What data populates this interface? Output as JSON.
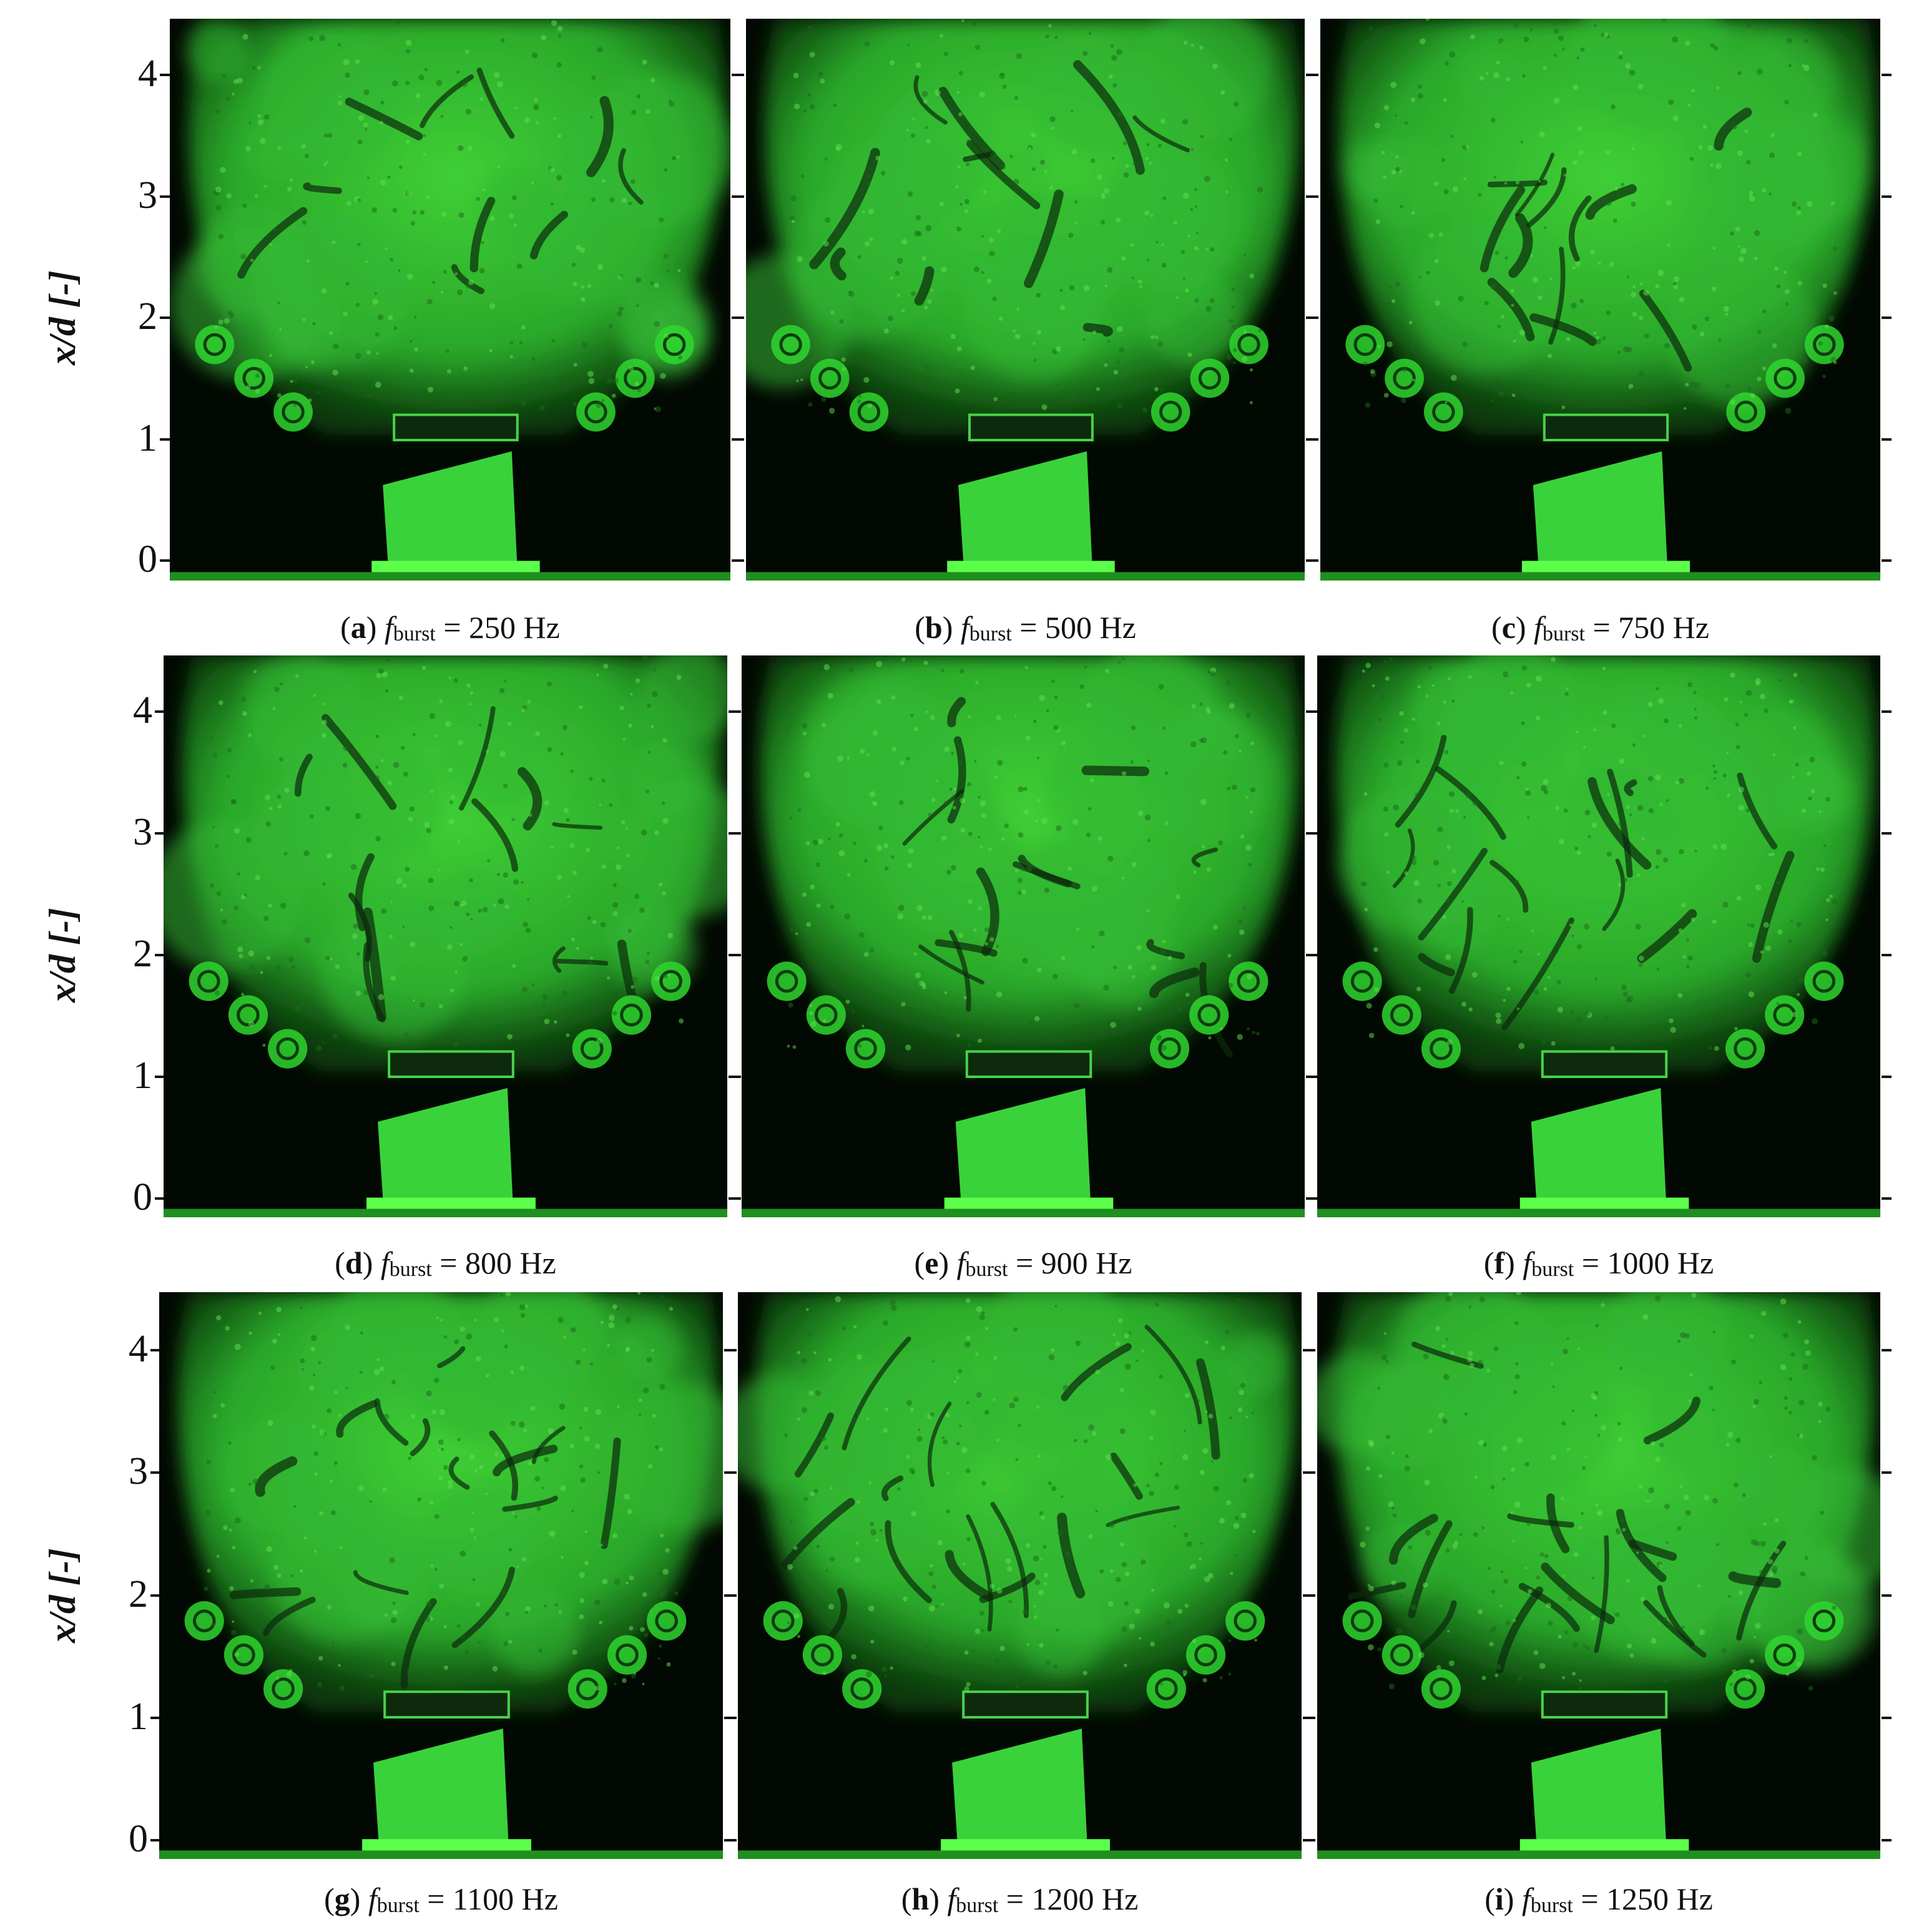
{
  "axis": {
    "ylabel": "x/d [-]",
    "ticks": [
      "0",
      "1",
      "2",
      "3",
      "4"
    ]
  },
  "panels": [
    {
      "letter": "a",
      "f": "f",
      "sub": "burst",
      "value": "= 250 Hz"
    },
    {
      "letter": "b",
      "f": "f",
      "sub": "burst",
      "value": "= 500 Hz"
    },
    {
      "letter": "c",
      "f": "f",
      "sub": "burst",
      "value": "= 750 Hz"
    },
    {
      "letter": "d",
      "f": "f",
      "sub": "burst",
      "value": "= 800 Hz"
    },
    {
      "letter": "e",
      "f": "f",
      "sub": "burst",
      "value": "= 900 Hz"
    },
    {
      "letter": "f",
      "f": "f",
      "sub": "burst",
      "value": "= 1000 Hz"
    },
    {
      "letter": "g",
      "f": "f",
      "sub": "burst",
      "value": "= 1100 Hz"
    },
    {
      "letter": "h",
      "f": "f",
      "sub": "burst",
      "value": "= 1200 Hz"
    },
    {
      "letter": "i",
      "f": "f",
      "sub": "burst",
      "value": "= 1250 Hz"
    }
  ],
  "colors": {
    "dye": "#2fd62f",
    "dye_bright": "#5cff4a",
    "background": "#020802"
  }
}
